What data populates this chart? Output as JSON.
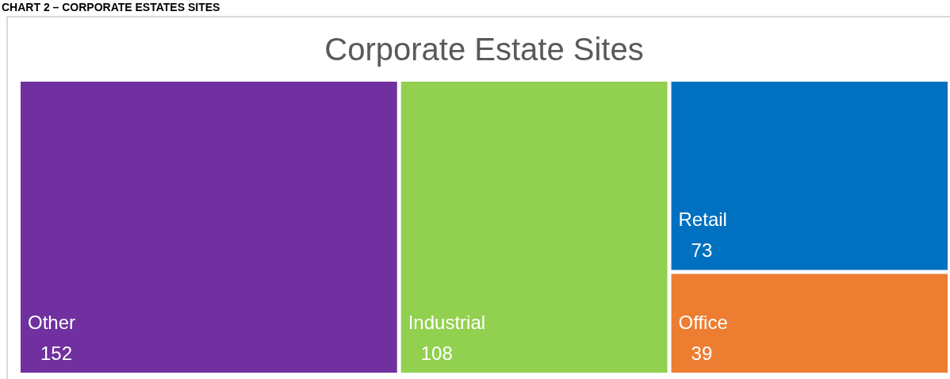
{
  "chart_data": {
    "type": "other",
    "title": "Corporate Estate Sites",
    "annotations": [
      "CHART 2 – CORPORATE ESTATES SITES"
    ],
    "categories": [
      "Other",
      "Industrial",
      "Retail",
      "Office"
    ],
    "values": [
      152,
      108,
      73,
      39
    ],
    "colors": [
      "#7030a0",
      "#92d050",
      "#0070c0",
      "#ed7d31"
    ],
    "data_labels": true
  }
}
